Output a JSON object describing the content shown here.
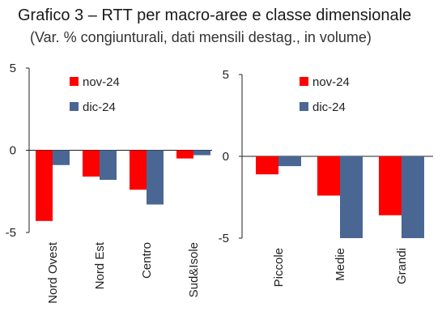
{
  "title": "Grafico 3 – RTT per macro-aree e classe dimensionale",
  "subtitle": "(Var. % congiunturali, dati mensili destag., in volume)",
  "colors": {
    "nov": "#ff0000",
    "dic": "#4a6794",
    "axis": "#222222"
  },
  "chart_data": [
    {
      "type": "bar",
      "categories": [
        "Nord Ovest",
        "Nord Est",
        "Centro",
        "Sud&Isole"
      ],
      "series": [
        {
          "name": "nov-24",
          "values": [
            -4.3,
            -1.6,
            -2.4,
            -0.5
          ]
        },
        {
          "name": "dic-24",
          "values": [
            -0.9,
            -1.8,
            -3.3,
            -0.3
          ]
        }
      ],
      "ylim": [
        -5,
        5
      ],
      "yticks": [
        "5",
        "0",
        "-5"
      ],
      "legend": "top-left",
      "grid": false
    },
    {
      "type": "bar",
      "categories": [
        "Piccole",
        "Medie",
        "Grandi"
      ],
      "series": [
        {
          "name": "nov-24",
          "values": [
            -1.1,
            -2.4,
            -3.6
          ]
        },
        {
          "name": "dic-24",
          "values": [
            -0.6,
            -5.0,
            -5.0
          ]
        }
      ],
      "ylim": [
        -5,
        5
      ],
      "yticks": [
        "5",
        "0",
        "-5"
      ],
      "legend": "top-left",
      "grid": false
    }
  ]
}
